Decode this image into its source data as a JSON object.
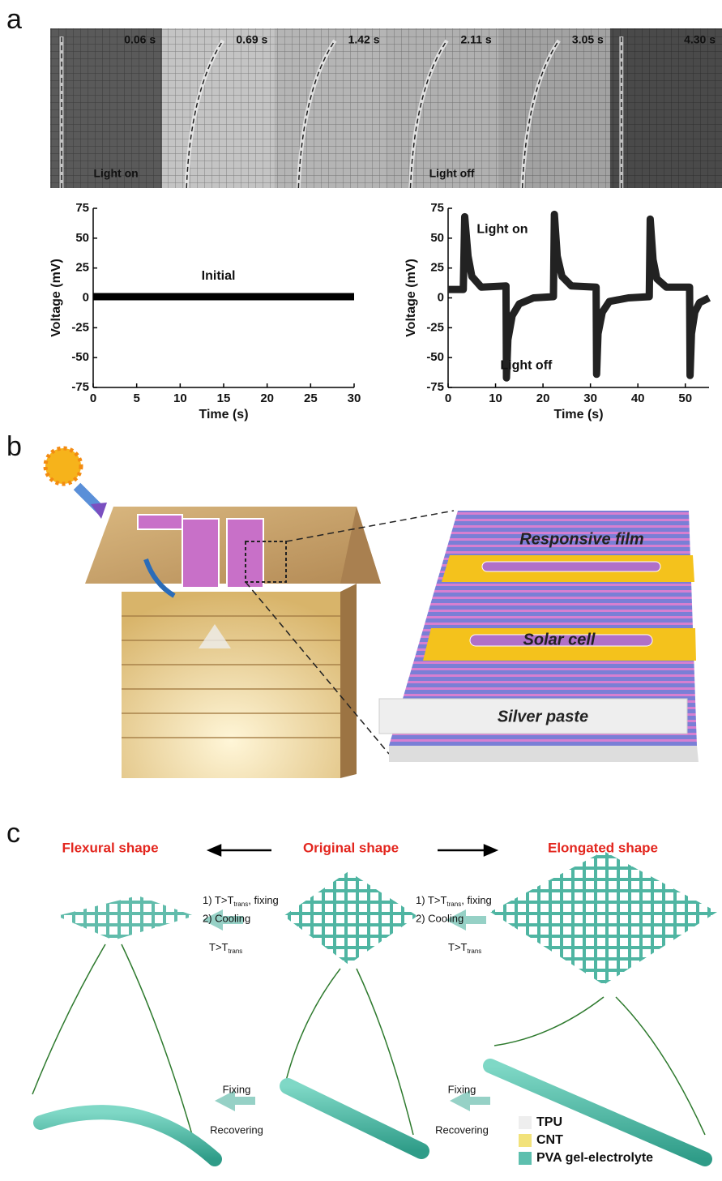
{
  "panel_a": {
    "label": "a",
    "frames": [
      {
        "time": "0.06 s",
        "caption": "Light on"
      },
      {
        "time": "0.69 s"
      },
      {
        "time": "1.42 s"
      },
      {
        "time": "2.11 s",
        "caption": "Light off"
      },
      {
        "time": "3.05 s"
      },
      {
        "time": "4.30 s"
      }
    ]
  },
  "chart_data": [
    {
      "type": "line",
      "xlabel": "Time (s)",
      "ylabel": "Voltage (mV)",
      "annotations": [
        "Initial"
      ],
      "x": [
        0,
        30
      ],
      "series": [
        {
          "color": "#000000",
          "values": [
            1,
            1
          ]
        }
      ],
      "xlim": [
        0,
        30
      ],
      "xticks": [
        0,
        5,
        10,
        15,
        20,
        25,
        30
      ],
      "ylim": [
        -75,
        75
      ],
      "yticks": [
        -75,
        -50,
        -25,
        0,
        25,
        50,
        75
      ]
    },
    {
      "type": "line",
      "xlabel": "Time (s)",
      "ylabel": "Voltage (mV)",
      "annotations": [
        "Light on",
        "Light off"
      ],
      "x": [
        0,
        3.2,
        3.5,
        4.2,
        5,
        7,
        12.2,
        12.3,
        12.6,
        13.5,
        15,
        18,
        22.2,
        22.4,
        23,
        24,
        26,
        31.2,
        31.3,
        31.6,
        32.5,
        34,
        38,
        42.4,
        42.6,
        43.2,
        44,
        46,
        50.9,
        51,
        51.3,
        52,
        53,
        55
      ],
      "series": [
        {
          "color": "#222222",
          "values": [
            7,
            7,
            68,
            35,
            18,
            9,
            10,
            -67,
            -35,
            -15,
            -5,
            0,
            1,
            70,
            35,
            18,
            10,
            9,
            -64,
            -30,
            -12,
            -3,
            0,
            1,
            66,
            32,
            16,
            9,
            9,
            -65,
            -30,
            -12,
            -4,
            0
          ]
        }
      ],
      "xlim": [
        0,
        55
      ],
      "xticks": [
        0,
        10,
        20,
        30,
        40,
        50
      ],
      "ylim": [
        -75,
        75
      ],
      "yticks": [
        -75,
        -50,
        -25,
        0,
        25,
        50,
        75
      ]
    }
  ],
  "panel_b": {
    "label": "b",
    "film_labels": [
      "Responsive film",
      "Solar cell",
      "Silver paste"
    ]
  },
  "panel_c": {
    "label": "c",
    "shapes": [
      "Flexural shape",
      "Original shape",
      "Elongated shape"
    ],
    "step1": {
      "text": "1) T>T",
      "sub": "trans",
      "suffix": ", fixing"
    },
    "step2": "2) Cooling",
    "reverse": {
      "text": "T>T",
      "sub": "trans"
    },
    "fixing": "Fixing",
    "recovering": "Recovering",
    "legend": [
      {
        "name": "TPU",
        "color": "#eeeeee"
      },
      {
        "name": "CNT",
        "color": "#f2e27a"
      },
      {
        "name": "PVA gel-electrolyte",
        "color": "#5dbfae"
      }
    ]
  }
}
